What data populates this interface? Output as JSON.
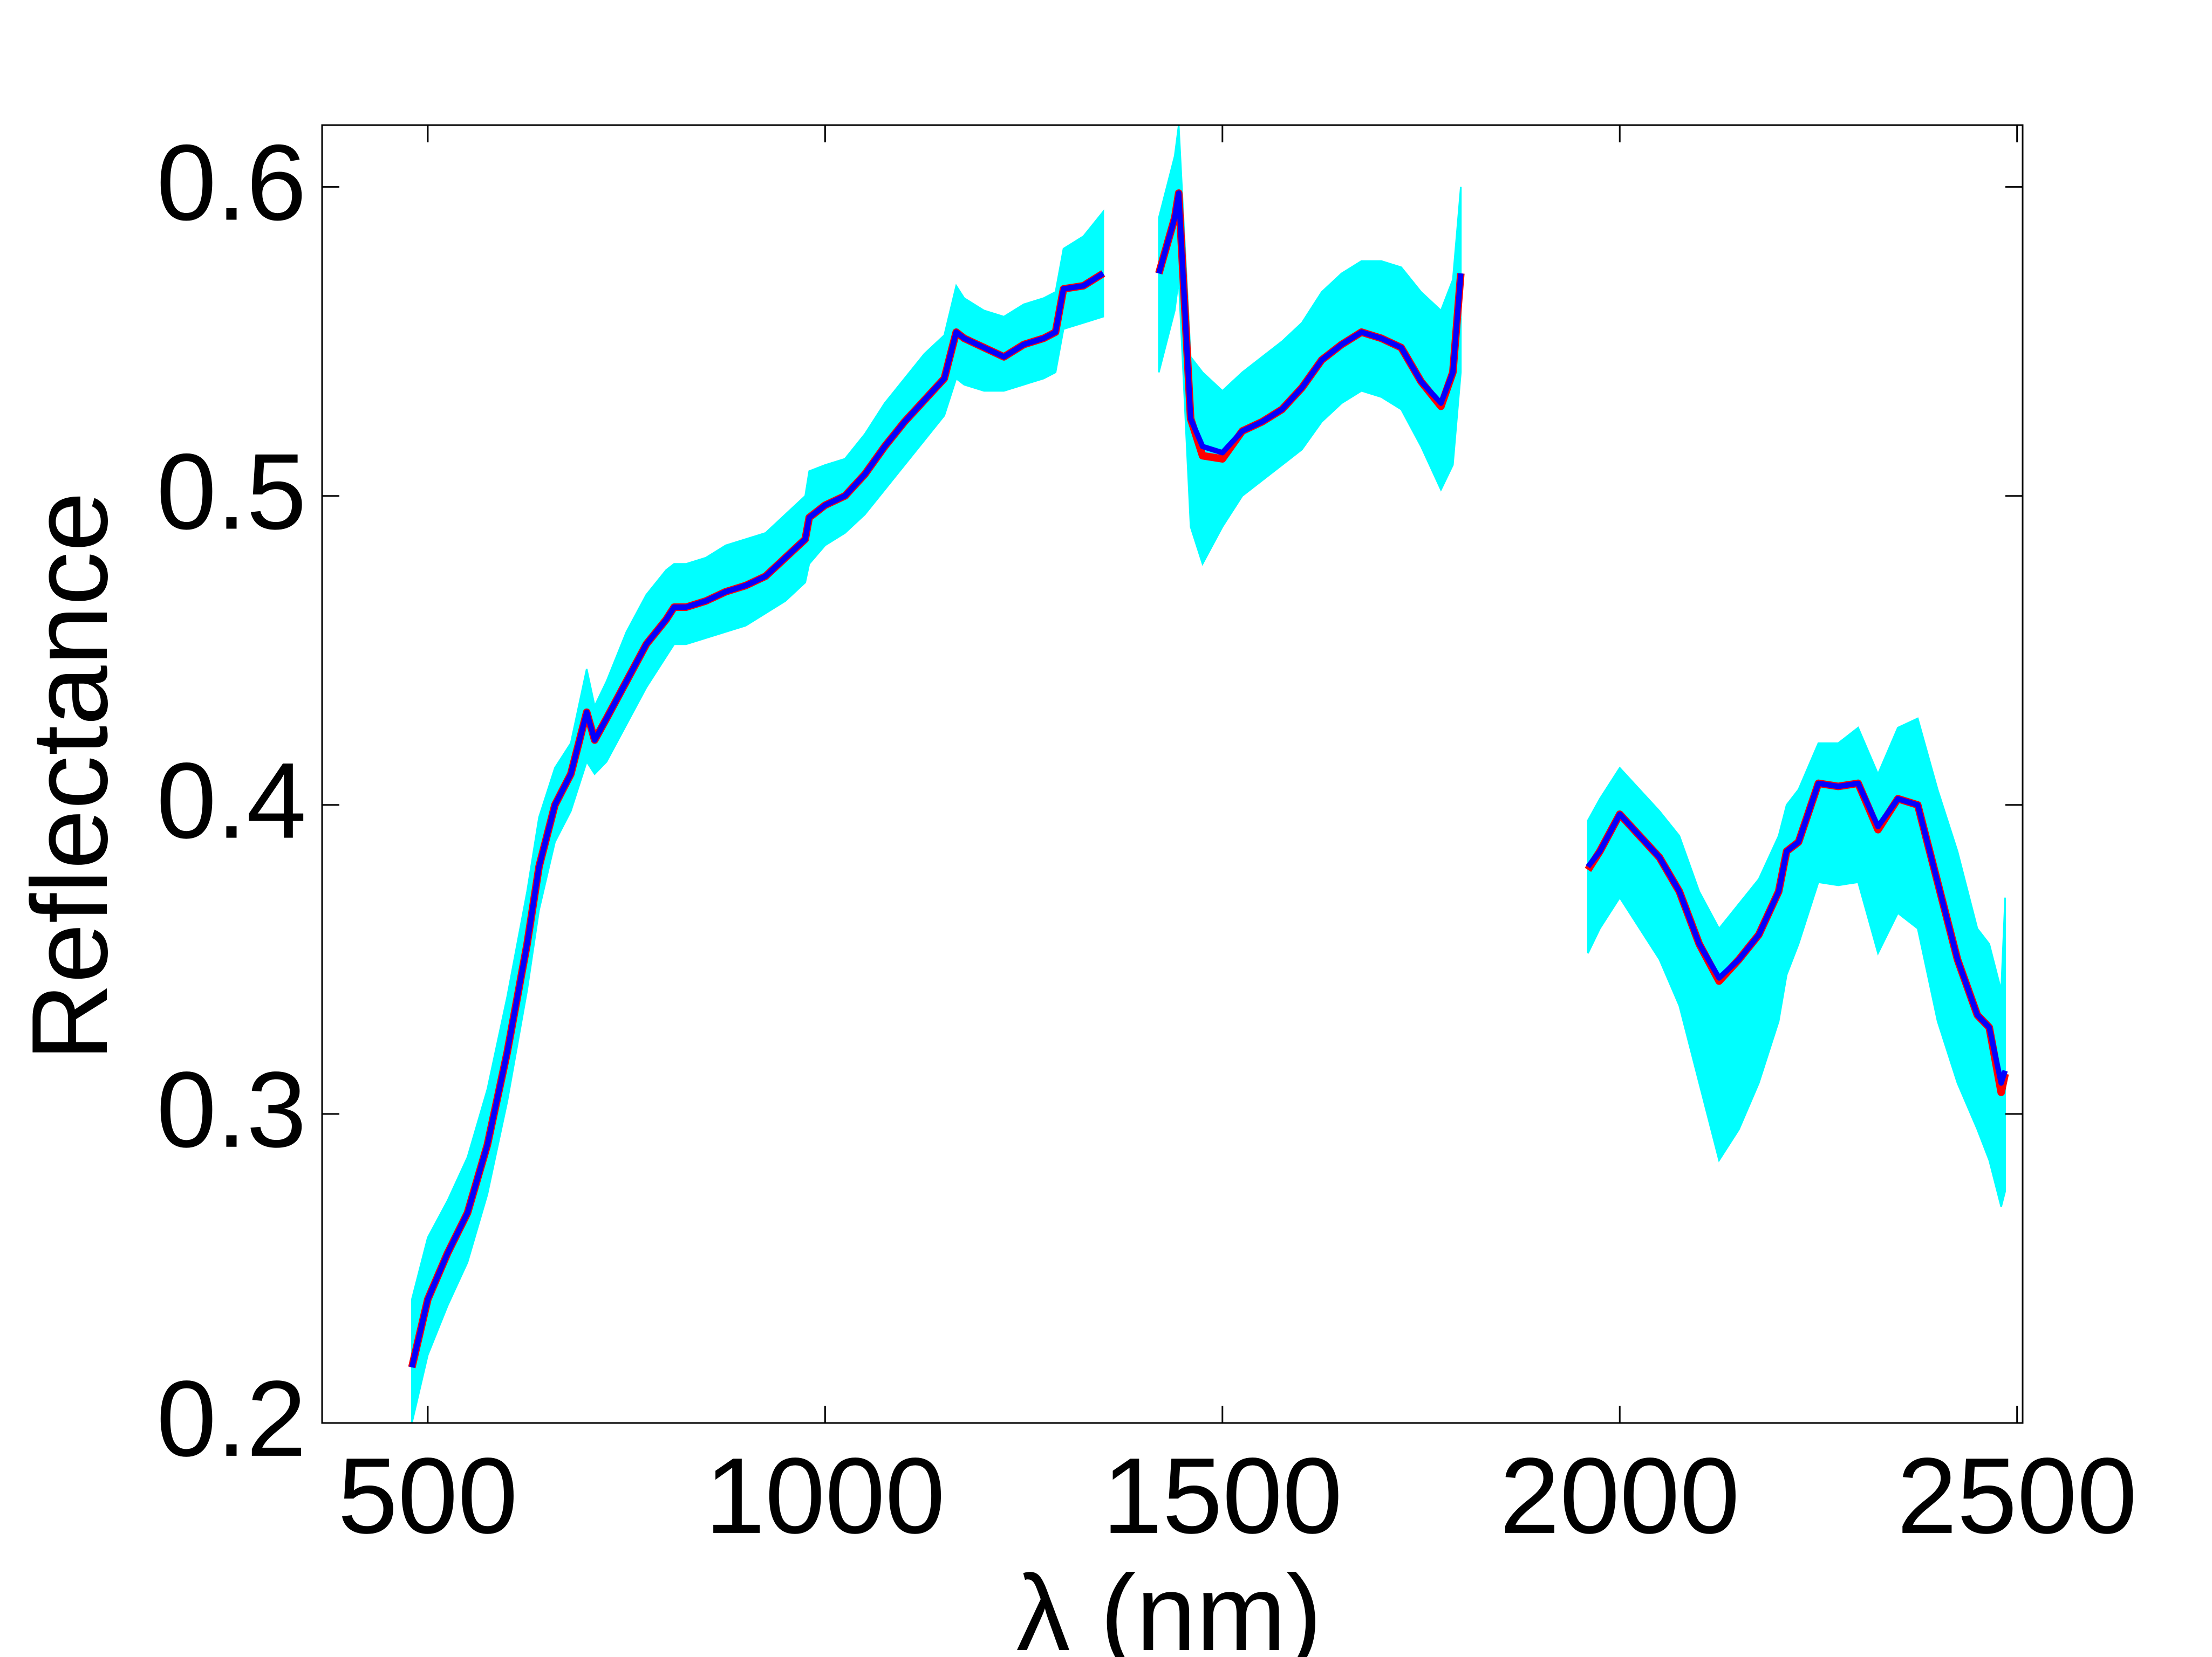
{
  "chart_data": {
    "type": "line",
    "x_label": "λ (nm)",
    "y_label": "Reflectance",
    "x": [
      480,
      500,
      525,
      550,
      575,
      600,
      625,
      640,
      660,
      680,
      700,
      710,
      725,
      750,
      775,
      800,
      810,
      825,
      850,
      875,
      900,
      925,
      950,
      975,
      980,
      1000,
      1025,
      1050,
      1075,
      1100,
      1125,
      1150,
      1165,
      1175,
      1200,
      1225,
      1250,
      1275,
      1290,
      1300,
      1325,
      1350,
      1385,
      1420,
      1440,
      1445,
      1460,
      1475,
      1500,
      1525,
      1550,
      1575,
      1600,
      1625,
      1650,
      1675,
      1700,
      1725,
      1750,
      1775,
      1790,
      1800,
      1880,
      1960,
      1975,
      2000,
      2025,
      2050,
      2075,
      2100,
      2125,
      2150,
      2175,
      2200,
      2210,
      2225,
      2250,
      2275,
      2300,
      2325,
      2350,
      2375,
      2400,
      2425,
      2450,
      2465,
      2480,
      2485
    ],
    "band": {
      "color": "#00ffff",
      "lower": [
        0.2,
        0.222,
        0.238,
        0.252,
        0.274,
        0.304,
        0.34,
        0.366,
        0.388,
        0.398,
        0.414,
        0.41,
        0.414,
        0.426,
        0.438,
        0.448,
        0.452,
        0.452,
        0.454,
        0.456,
        0.458,
        0.462,
        0.466,
        0.472,
        0.478,
        0.484,
        0.488,
        0.494,
        0.502,
        0.51,
        0.518,
        0.526,
        0.538,
        0.536,
        0.534,
        0.534,
        0.536,
        0.538,
        0.54,
        0.554,
        0.556,
        0.558,
        null,
        0.54,
        0.56,
        0.57,
        0.49,
        0.478,
        0.49,
        0.5,
        0.505,
        0.51,
        0.515,
        0.524,
        0.53,
        0.534,
        0.532,
        0.528,
        0.516,
        0.502,
        0.51,
        0.54,
        null,
        0.352,
        0.36,
        0.37,
        0.36,
        0.35,
        0.335,
        0.31,
        0.285,
        0.295,
        0.31,
        0.33,
        0.345,
        0.355,
        0.375,
        0.374,
        0.375,
        0.352,
        0.365,
        0.36,
        0.33,
        0.31,
        0.295,
        0.285,
        0.27,
        0.275
      ],
      "upper": [
        0.24,
        0.26,
        0.272,
        0.286,
        0.308,
        0.338,
        0.372,
        0.396,
        0.412,
        0.42,
        0.444,
        0.432,
        0.44,
        0.456,
        0.468,
        0.476,
        0.478,
        0.478,
        0.48,
        0.484,
        0.486,
        0.488,
        0.494,
        0.5,
        0.508,
        0.51,
        0.512,
        0.52,
        0.53,
        0.538,
        0.546,
        0.552,
        0.568,
        0.564,
        0.56,
        0.558,
        0.562,
        0.564,
        0.566,
        0.58,
        0.584,
        0.592,
        null,
        0.59,
        0.61,
        0.62,
        0.545,
        0.54,
        0.534,
        0.54,
        0.545,
        0.55,
        0.556,
        0.566,
        0.572,
        0.576,
        0.576,
        0.574,
        0.566,
        0.56,
        0.57,
        0.6,
        null,
        0.395,
        0.402,
        0.412,
        0.405,
        0.398,
        0.39,
        0.372,
        0.36,
        0.368,
        0.376,
        0.39,
        0.4,
        0.405,
        0.42,
        0.42,
        0.425,
        0.41,
        0.425,
        0.428,
        0.405,
        0.385,
        0.36,
        0.355,
        0.34,
        0.37
      ]
    },
    "series": [
      {
        "color": "#ff0000",
        "values": [
          0.218,
          0.24,
          0.255,
          0.268,
          0.29,
          0.32,
          0.355,
          0.38,
          0.4,
          0.41,
          0.43,
          0.421,
          0.428,
          0.44,
          0.452,
          0.46,
          0.464,
          0.464,
          0.466,
          0.469,
          0.471,
          0.474,
          0.48,
          0.486,
          0.493,
          0.497,
          0.5,
          0.507,
          0.516,
          0.524,
          0.531,
          0.538,
          0.553,
          0.551,
          0.548,
          0.545,
          0.549,
          0.551,
          0.553,
          0.567,
          0.568,
          0.572,
          null,
          0.572,
          0.59,
          0.598,
          0.525,
          0.513,
          0.512,
          0.521,
          0.524,
          0.528,
          0.535,
          0.544,
          0.549,
          0.553,
          0.551,
          0.548,
          0.537,
          0.529,
          0.54,
          0.572,
          null,
          0.379,
          0.385,
          0.397,
          0.39,
          0.383,
          0.372,
          0.355,
          0.343,
          0.35,
          0.358,
          0.372,
          0.385,
          0.388,
          0.407,
          0.406,
          0.407,
          0.392,
          0.402,
          0.4,
          0.375,
          0.35,
          0.332,
          0.328,
          0.307,
          0.313
        ]
      },
      {
        "color": "#0000ff",
        "values": [
          0.218,
          0.24,
          0.255,
          0.268,
          0.29,
          0.32,
          0.355,
          0.38,
          0.4,
          0.41,
          0.43,
          0.421,
          0.428,
          0.44,
          0.452,
          0.46,
          0.464,
          0.464,
          0.466,
          0.469,
          0.471,
          0.474,
          0.48,
          0.486,
          0.493,
          0.497,
          0.5,
          0.507,
          0.516,
          0.524,
          0.531,
          0.538,
          0.553,
          0.551,
          0.548,
          0.545,
          0.549,
          0.551,
          0.553,
          0.567,
          0.568,
          0.572,
          null,
          0.572,
          0.59,
          0.598,
          0.525,
          0.516,
          0.514,
          0.521,
          0.524,
          0.528,
          0.535,
          0.544,
          0.549,
          0.553,
          0.551,
          0.548,
          0.537,
          0.53,
          0.54,
          0.572,
          null,
          0.38,
          0.385,
          0.397,
          0.39,
          0.383,
          0.372,
          0.355,
          0.344,
          0.35,
          0.358,
          0.372,
          0.385,
          0.388,
          0.407,
          0.406,
          0.407,
          0.393,
          0.402,
          0.4,
          0.375,
          0.35,
          0.332,
          0.328,
          0.31,
          0.314
        ]
      }
    ],
    "xlim": [
      367,
      2507
    ],
    "ylim": [
      0.2,
      0.62
    ],
    "xticks": [
      500,
      1000,
      1500,
      2000,
      2500
    ],
    "yticks": [
      0.2,
      0.3,
      0.4,
      0.5,
      0.6
    ]
  }
}
